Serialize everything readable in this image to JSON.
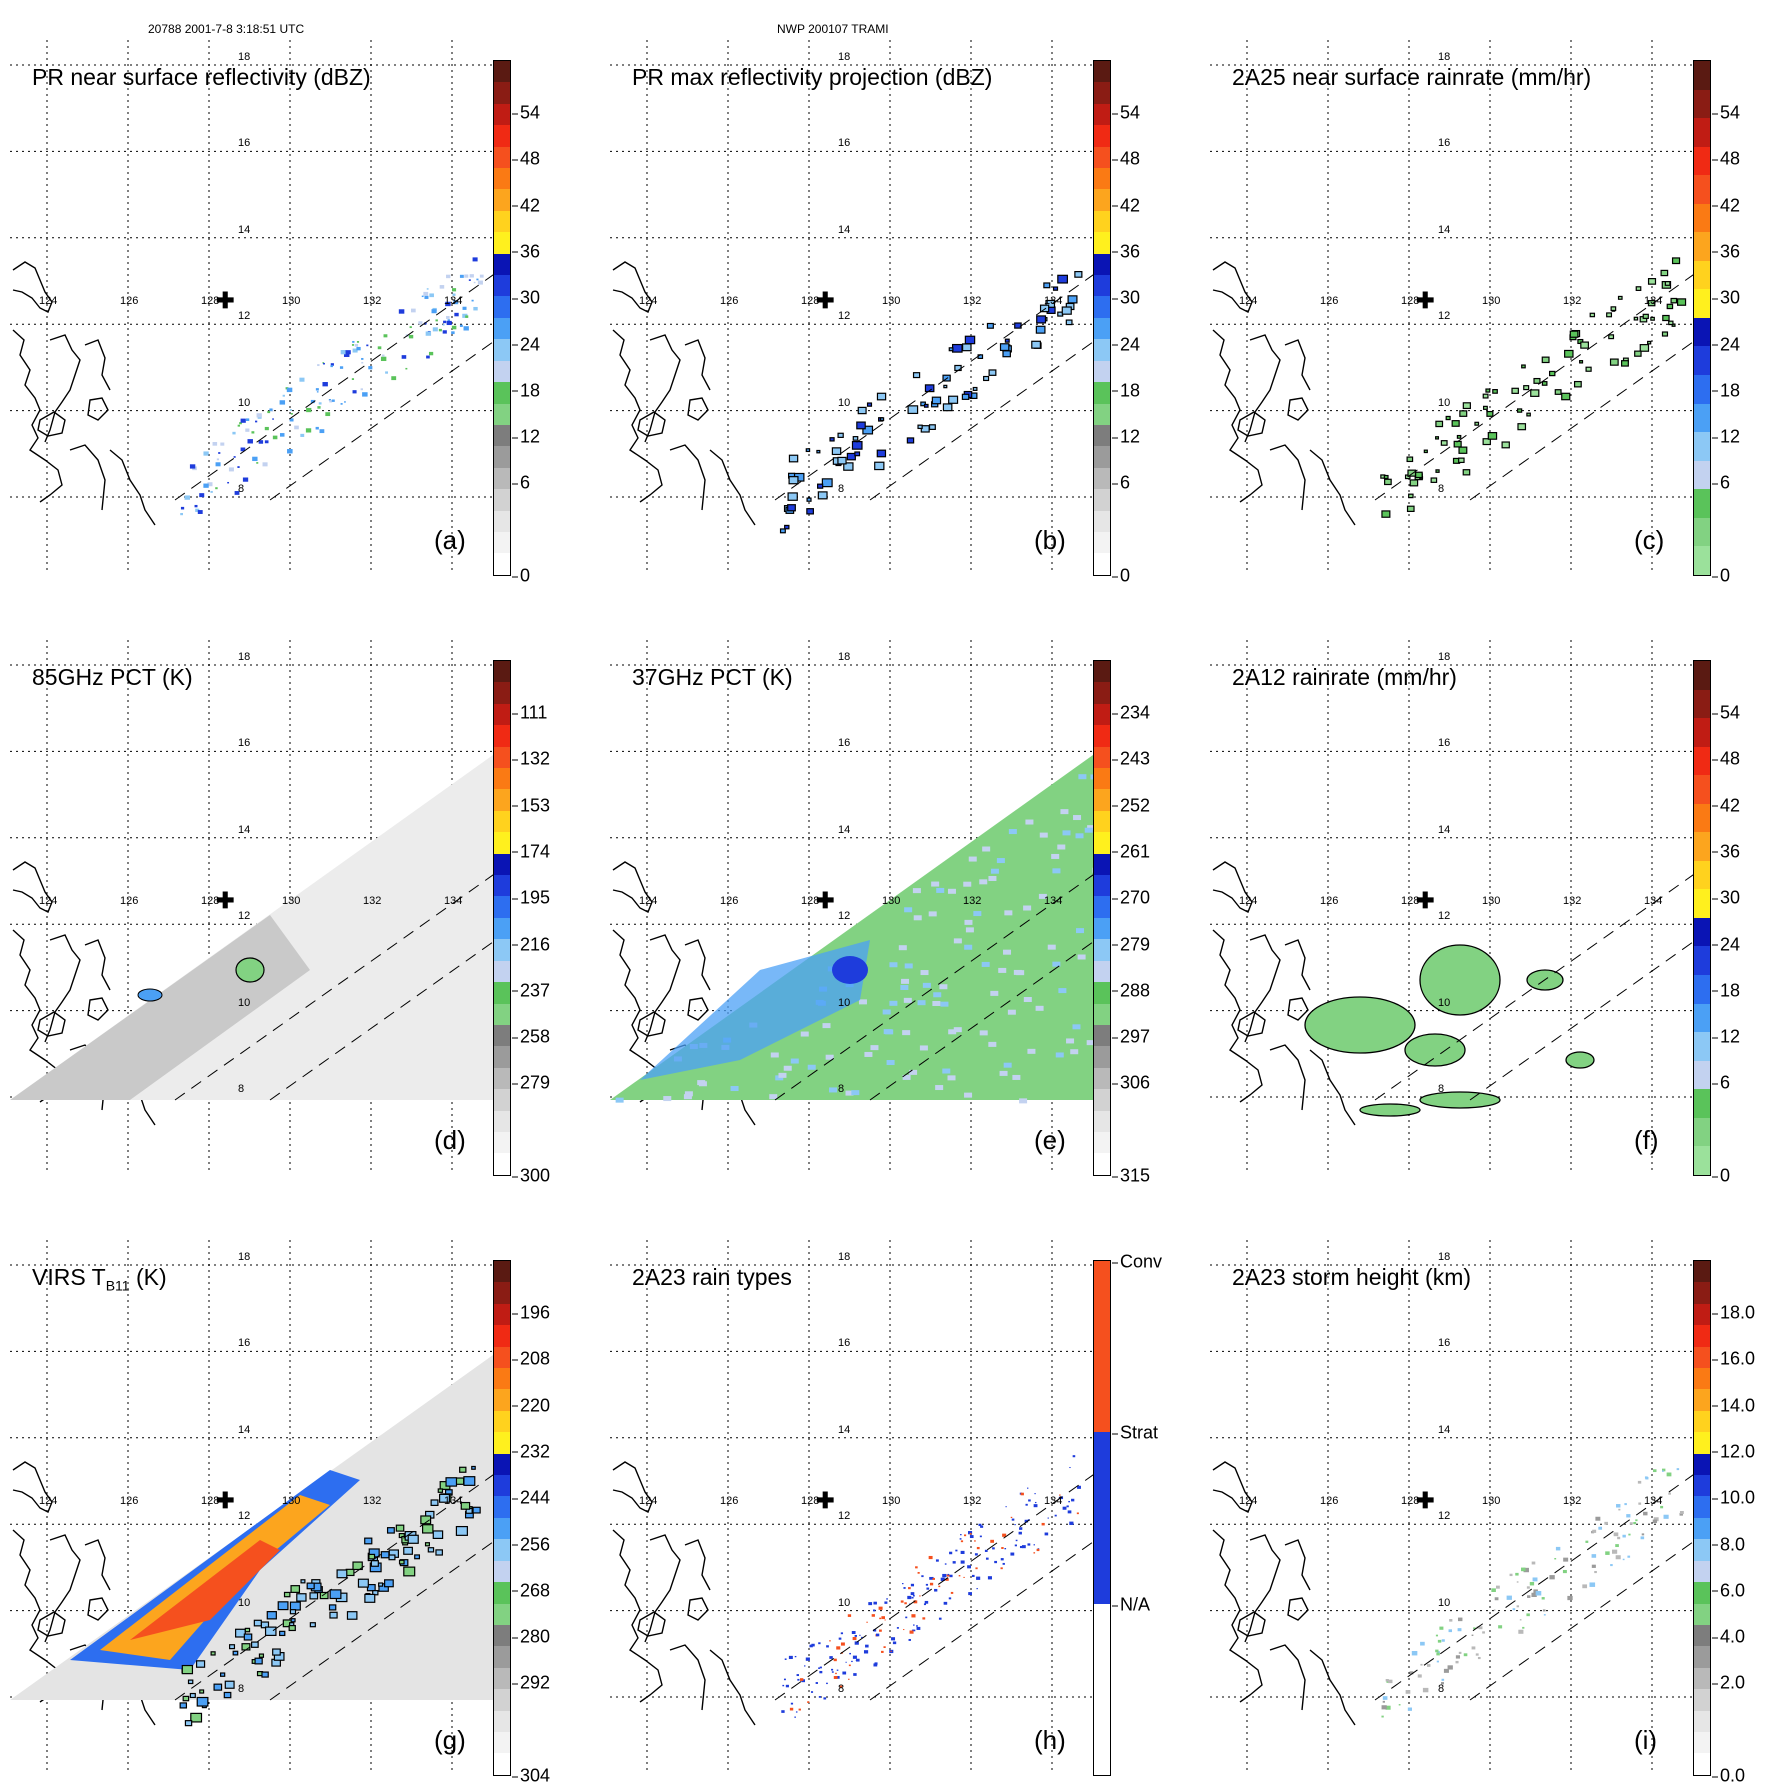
{
  "header": {
    "left": "20788 2001-7-8 3:18:51 UTC",
    "center": "NWP 200107 TRAMI"
  },
  "map": {
    "lon_labels": [
      "124",
      "126",
      "128",
      "130",
      "132",
      "134"
    ],
    "lat_labels": [
      "18",
      "16",
      "14",
      "12",
      "10",
      "8"
    ],
    "center_marker": "plus-icon"
  },
  "panels": [
    {
      "id": "a",
      "title": "PR near surface reflectivity (dBZ)",
      "label": "(a)",
      "field": "swath-pr",
      "colorbar": {
        "ticks": [
          "54",
          "48",
          "42",
          "36",
          "30",
          "24",
          "18",
          "12",
          "6",
          "0"
        ],
        "palette": "refl"
      }
    },
    {
      "id": "b",
      "title": "PR max reflectivity projection (dBZ)",
      "label": "(b)",
      "field": "swath-pr-contour",
      "colorbar": {
        "ticks": [
          "54",
          "48",
          "42",
          "36",
          "30",
          "24",
          "18",
          "12",
          "6",
          "0"
        ],
        "palette": "refl"
      }
    },
    {
      "id": "c",
      "title": "2A25 near surface rainrate (mm/hr)",
      "label": "(c)",
      "field": "swath-pr-green",
      "colorbar": {
        "ticks": [
          "54",
          "48",
          "42",
          "36",
          "30",
          "24",
          "18",
          "12",
          "6",
          "0"
        ],
        "palette": "rain"
      }
    },
    {
      "id": "d",
      "title": "85GHz PCT (K)",
      "label": "(d)",
      "field": "tmi-gray",
      "colorbar": {
        "ticks": [
          "111",
          "132",
          "153",
          "174",
          "195",
          "216",
          "237",
          "258",
          "279",
          "300"
        ],
        "palette": "refl"
      }
    },
    {
      "id": "e",
      "title": "37GHz PCT (K)",
      "label": "(e)",
      "field": "tmi-green",
      "colorbar": {
        "ticks": [
          "234",
          "243",
          "252",
          "261",
          "270",
          "279",
          "288",
          "297",
          "306",
          "315"
        ],
        "palette": "refl"
      }
    },
    {
      "id": "f",
      "title": "2A12 rainrate (mm/hr)",
      "label": "(f)",
      "field": "tmi-rain",
      "colorbar": {
        "ticks": [
          "54",
          "48",
          "42",
          "36",
          "30",
          "24",
          "18",
          "12",
          "6",
          "0"
        ],
        "palette": "rain"
      }
    },
    {
      "id": "g",
      "title": "VIRS T",
      "title_sub": "B11",
      "title_suffix": " (K)",
      "label": "(g)",
      "field": "virs",
      "colorbar": {
        "ticks": [
          "196",
          "208",
          "220",
          "232",
          "244",
          "256",
          "268",
          "280",
          "292",
          "304"
        ],
        "palette": "refl"
      }
    },
    {
      "id": "h",
      "title": "2A23 rain types",
      "label": "(h)",
      "field": "swath-types",
      "colorbar": {
        "ticks": [
          "Conv",
          "Strat",
          "N/A"
        ],
        "palette": "types"
      }
    },
    {
      "id": "i",
      "title": "2A23 storm height (km)",
      "label": "(i)",
      "field": "swath-height",
      "colorbar": {
        "ticks": [
          "18.0",
          "16.0",
          "14.0",
          "12.0",
          "10.0",
          "8.0",
          "6.0",
          "4.0",
          "2.0",
          "0.0"
        ],
        "palette": "refl"
      }
    }
  ],
  "colors": {
    "refl": [
      "#5a1a12",
      "#8a1c14",
      "#c01c14",
      "#f02a14",
      "#f5501e",
      "#fa7a14",
      "#fca51e",
      "#ffd21e",
      "#fff01e",
      "#0a14b4",
      "#1e3cdc",
      "#2d6ef0",
      "#4ba0f5",
      "#8cc8f5",
      "#c3d2f0",
      "#5ac35a",
      "#82d282",
      "#7d7d7d",
      "#9b9b9b",
      "#b9b9b9",
      "#d2d2d2",
      "#e6e6e6",
      "#f3f3f3",
      "#ffffff"
    ],
    "rain": [
      "#5a1a12",
      "#8a1c14",
      "#c01c14",
      "#f02a14",
      "#f5501e",
      "#fa7a14",
      "#fca51e",
      "#ffd21e",
      "#fff01e",
      "#0a14b4",
      "#1e3cdc",
      "#2d6ef0",
      "#4ba0f5",
      "#8cc8f5",
      "#c3d2f0",
      "#5ac35a",
      "#82d282",
      "#9be19b"
    ],
    "types": [
      "#f5501e",
      "#1e3cdc",
      "#ffffff"
    ]
  }
}
